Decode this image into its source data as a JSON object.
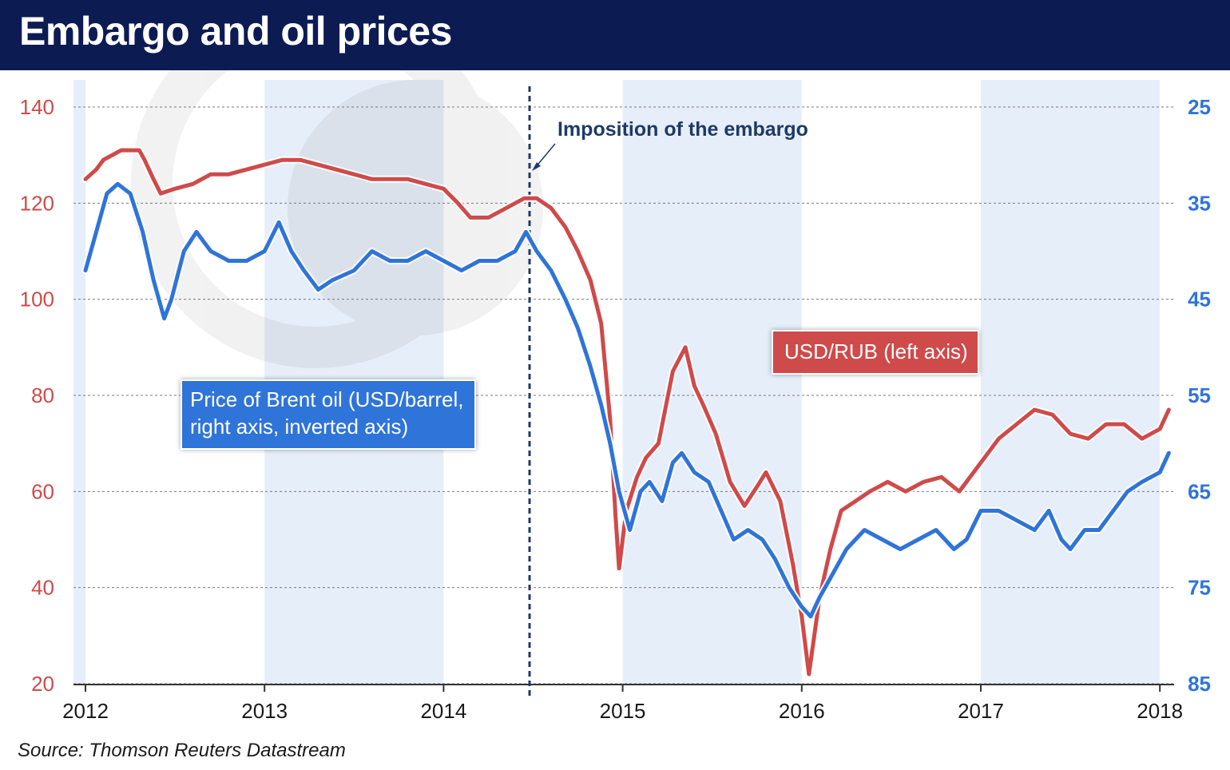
{
  "header": {
    "title": "Embargo and oil prices"
  },
  "source": "Source: Thomson Reuters Datastream",
  "colors": {
    "header": "#0d1b53",
    "usdrub": "#cf4a4a",
    "brent": "#2f74d8",
    "band": "#e6eef9",
    "annotation": "#1e3a66"
  },
  "chart_data": {
    "type": "line",
    "x_ticks": [
      "2012",
      "2013",
      "2014",
      "2015",
      "2016",
      "2017",
      "2018"
    ],
    "left_axis": {
      "ticks": [
        "20",
        "40",
        "60",
        "80",
        "100",
        "120",
        "140"
      ],
      "range": [
        20,
        140
      ],
      "color": "#cf4a4a"
    },
    "right_axis": {
      "ticks": [
        "25",
        "35",
        "45",
        "55",
        "65",
        "75",
        "85"
      ],
      "range": [
        25,
        85
      ],
      "inverted": true,
      "color": "#2f74d8"
    },
    "annotation": {
      "label": "Imposition of the embargo",
      "x": 2014.48
    },
    "grid": true,
    "series": [
      {
        "name": "USD/RUB (left axis)",
        "axis": "left",
        "color": "#cf4a4a",
        "points": [
          [
            2012.0,
            125
          ],
          [
            2012.06,
            127
          ],
          [
            2012.1,
            129
          ],
          [
            2012.15,
            130
          ],
          [
            2012.2,
            131
          ],
          [
            2012.3,
            131
          ],
          [
            2012.33,
            129
          ],
          [
            2012.38,
            125
          ],
          [
            2012.42,
            122
          ],
          [
            2012.5,
            123
          ],
          [
            2012.6,
            124
          ],
          [
            2012.7,
            126
          ],
          [
            2012.8,
            126
          ],
          [
            2012.9,
            127
          ],
          [
            2013.0,
            128
          ],
          [
            2013.1,
            129
          ],
          [
            2013.2,
            129
          ],
          [
            2013.3,
            128
          ],
          [
            2013.4,
            127
          ],
          [
            2013.5,
            126
          ],
          [
            2013.6,
            125
          ],
          [
            2013.7,
            125
          ],
          [
            2013.8,
            125
          ],
          [
            2013.9,
            124
          ],
          [
            2014.0,
            123
          ],
          [
            2014.08,
            120
          ],
          [
            2014.15,
            117
          ],
          [
            2014.25,
            117
          ],
          [
            2014.35,
            119
          ],
          [
            2014.45,
            121
          ],
          [
            2014.52,
            121
          ],
          [
            2014.6,
            119
          ],
          [
            2014.68,
            115
          ],
          [
            2014.75,
            110
          ],
          [
            2014.82,
            104
          ],
          [
            2014.88,
            95
          ],
          [
            2014.93,
            75
          ],
          [
            2014.96,
            55
          ],
          [
            2014.98,
            44
          ],
          [
            2015.02,
            56
          ],
          [
            2015.08,
            63
          ],
          [
            2015.13,
            67
          ],
          [
            2015.2,
            70
          ],
          [
            2015.28,
            85
          ],
          [
            2015.35,
            90
          ],
          [
            2015.4,
            82
          ],
          [
            2015.45,
            78
          ],
          [
            2015.52,
            72
          ],
          [
            2015.6,
            62
          ],
          [
            2015.68,
            57
          ],
          [
            2015.75,
            61
          ],
          [
            2015.8,
            64
          ],
          [
            2015.88,
            58
          ],
          [
            2015.95,
            45
          ],
          [
            2016.0,
            34
          ],
          [
            2016.04,
            22
          ],
          [
            2016.1,
            38
          ],
          [
            2016.16,
            48
          ],
          [
            2016.22,
            56
          ],
          [
            2016.3,
            58
          ],
          [
            2016.38,
            60
          ],
          [
            2016.48,
            62
          ],
          [
            2016.58,
            60
          ],
          [
            2016.68,
            62
          ],
          [
            2016.78,
            63
          ],
          [
            2016.88,
            60
          ],
          [
            2017.0,
            66
          ],
          [
            2017.1,
            71
          ],
          [
            2017.2,
            74
          ],
          [
            2017.3,
            77
          ],
          [
            2017.4,
            76
          ],
          [
            2017.5,
            72
          ],
          [
            2017.6,
            71
          ],
          [
            2017.7,
            74
          ],
          [
            2017.8,
            74
          ],
          [
            2017.9,
            71
          ],
          [
            2018.0,
            73
          ],
          [
            2018.05,
            77
          ]
        ]
      },
      {
        "name": "Price of Brent oil (USD/barrel, right axis, inverted axis)",
        "axis": "right",
        "color": "#2f74d8",
        "points": [
          [
            2012.0,
            42
          ],
          [
            2012.06,
            38
          ],
          [
            2012.12,
            34
          ],
          [
            2012.18,
            33
          ],
          [
            2012.25,
            34
          ],
          [
            2012.32,
            38
          ],
          [
            2012.38,
            43
          ],
          [
            2012.44,
            47
          ],
          [
            2012.48,
            45
          ],
          [
            2012.55,
            40
          ],
          [
            2012.62,
            38
          ],
          [
            2012.7,
            40
          ],
          [
            2012.8,
            41
          ],
          [
            2012.9,
            41
          ],
          [
            2013.0,
            40
          ],
          [
            2013.08,
            37
          ],
          [
            2013.15,
            40
          ],
          [
            2013.22,
            42
          ],
          [
            2013.3,
            44
          ],
          [
            2013.38,
            43
          ],
          [
            2013.5,
            42
          ],
          [
            2013.6,
            40
          ],
          [
            2013.7,
            41
          ],
          [
            2013.8,
            41
          ],
          [
            2013.9,
            40
          ],
          [
            2014.0,
            41
          ],
          [
            2014.1,
            42
          ],
          [
            2014.2,
            41
          ],
          [
            2014.3,
            41
          ],
          [
            2014.4,
            40
          ],
          [
            2014.46,
            38
          ],
          [
            2014.52,
            40
          ],
          [
            2014.6,
            42
          ],
          [
            2014.68,
            45
          ],
          [
            2014.75,
            48
          ],
          [
            2014.82,
            52
          ],
          [
            2014.88,
            56
          ],
          [
            2014.93,
            60
          ],
          [
            2014.98,
            65
          ],
          [
            2015.04,
            69
          ],
          [
            2015.1,
            65
          ],
          [
            2015.15,
            64
          ],
          [
            2015.22,
            66
          ],
          [
            2015.28,
            62
          ],
          [
            2015.33,
            61
          ],
          [
            2015.4,
            63
          ],
          [
            2015.48,
            64
          ],
          [
            2015.55,
            67
          ],
          [
            2015.62,
            70
          ],
          [
            2015.7,
            69
          ],
          [
            2015.78,
            70
          ],
          [
            2015.85,
            72
          ],
          [
            2015.93,
            75
          ],
          [
            2016.0,
            77
          ],
          [
            2016.05,
            78
          ],
          [
            2016.1,
            76
          ],
          [
            2016.16,
            74
          ],
          [
            2016.25,
            71
          ],
          [
            2016.35,
            69
          ],
          [
            2016.45,
            70
          ],
          [
            2016.55,
            71
          ],
          [
            2016.65,
            70
          ],
          [
            2016.75,
            69
          ],
          [
            2016.85,
            71
          ],
          [
            2016.92,
            70
          ],
          [
            2017.0,
            67
          ],
          [
            2017.1,
            67
          ],
          [
            2017.2,
            68
          ],
          [
            2017.3,
            69
          ],
          [
            2017.38,
            67
          ],
          [
            2017.45,
            70
          ],
          [
            2017.5,
            71
          ],
          [
            2017.58,
            69
          ],
          [
            2017.66,
            69
          ],
          [
            2017.74,
            67
          ],
          [
            2017.82,
            65
          ],
          [
            2017.9,
            64
          ],
          [
            2018.0,
            63
          ],
          [
            2018.05,
            61
          ]
        ]
      }
    ]
  },
  "legend": {
    "usdrub_label": "USD/RUB (left axis)",
    "brent_label": "Price of Brent oil (USD/barrel,\nright axis, inverted axis)"
  }
}
